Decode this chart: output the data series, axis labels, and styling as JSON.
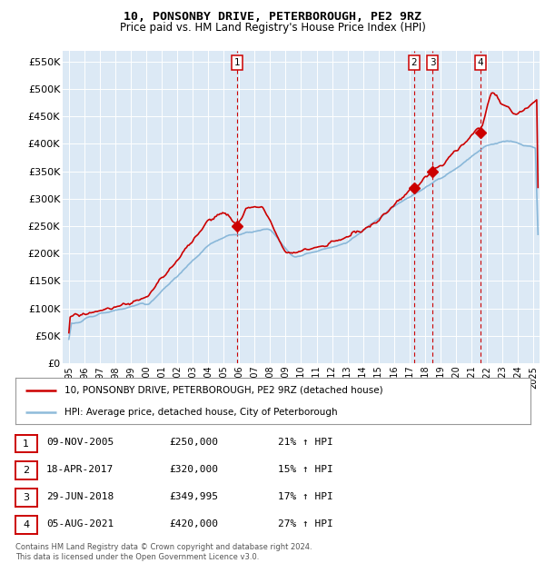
{
  "title1": "10, PONSONBY DRIVE, PETERBOROUGH, PE2 9RZ",
  "title2": "Price paid vs. HM Land Registry's House Price Index (HPI)",
  "ylabel_ticks": [
    "£0",
    "£50K",
    "£100K",
    "£150K",
    "£200K",
    "£250K",
    "£300K",
    "£350K",
    "£400K",
    "£450K",
    "£500K",
    "£550K"
  ],
  "ytick_vals": [
    0,
    50000,
    100000,
    150000,
    200000,
    250000,
    300000,
    350000,
    400000,
    450000,
    500000,
    550000
  ],
  "ylim": [
    0,
    570000
  ],
  "xlim_start": 1994.6,
  "xlim_end": 2025.4,
  "background_color": "#dce9f5",
  "sale_markers": [
    {
      "label": "1",
      "date_num": 2005.86,
      "price": 250000
    },
    {
      "label": "2",
      "date_num": 2017.29,
      "price": 320000
    },
    {
      "label": "3",
      "date_num": 2018.49,
      "price": 349995
    },
    {
      "label": "4",
      "date_num": 2021.59,
      "price": 420000
    }
  ],
  "legend_line1": "10, PONSONBY DRIVE, PETERBOROUGH, PE2 9RZ (detached house)",
  "legend_line2": "HPI: Average price, detached house, City of Peterborough",
  "table": [
    {
      "num": "1",
      "date": "09-NOV-2005",
      "price": "£250,000",
      "hpi": "21% ↑ HPI"
    },
    {
      "num": "2",
      "date": "18-APR-2017",
      "price": "£320,000",
      "hpi": "15% ↑ HPI"
    },
    {
      "num": "3",
      "date": "29-JUN-2018",
      "price": "£349,995",
      "hpi": "17% ↑ HPI"
    },
    {
      "num": "4",
      "date": "05-AUG-2021",
      "price": "£420,000",
      "hpi": "27% ↑ HPI"
    }
  ],
  "footnote": "Contains HM Land Registry data © Crown copyright and database right 2024.\nThis data is licensed under the Open Government Licence v3.0.",
  "red_color": "#cc0000",
  "blue_color": "#7bafd4"
}
